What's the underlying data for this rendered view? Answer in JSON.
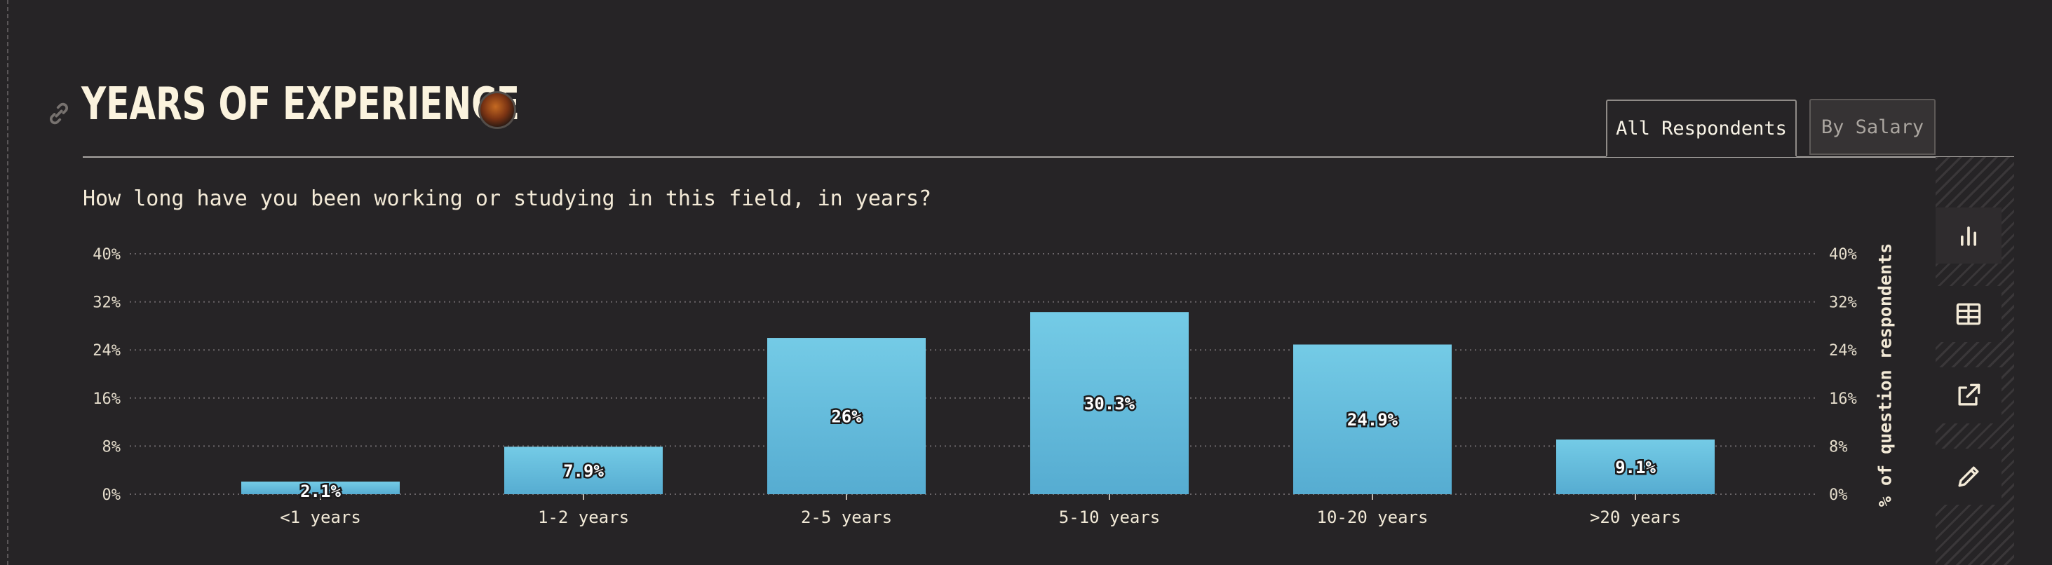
{
  "section": {
    "title": "YEARS OF EXPERIENCE",
    "question": "How long have you been working or studying in this field, in years?",
    "icons": [
      "link-icon",
      "avatar"
    ]
  },
  "tabs": [
    {
      "label": "All Respondents",
      "active": true
    },
    {
      "label": "By Salary",
      "active": false
    }
  ],
  "toolbar": {
    "items": [
      {
        "name": "bar-chart-icon",
        "active": true
      },
      {
        "name": "table-icon",
        "active": false
      },
      {
        "name": "share-icon",
        "active": false
      },
      {
        "name": "edit-icon",
        "active": false
      }
    ]
  },
  "colors": {
    "background": "#262426",
    "bar_top": "#74cbe6",
    "bar_bottom": "#56acd1",
    "text": "#f3ead7"
  },
  "chart_data": {
    "type": "bar",
    "categories": [
      "<1 years",
      "1-2 years",
      "2-5 years",
      "5-10 years",
      "10-20 years",
      ">20 years"
    ],
    "values": [
      2.1,
      7.9,
      26,
      30.3,
      24.9,
      9.1
    ],
    "value_labels": [
      "2.1%",
      "7.9%",
      "26%",
      "30.3%",
      "24.9%",
      "9.1%"
    ],
    "y_ticks": [
      "0%",
      "8%",
      "16%",
      "24%",
      "32%",
      "40%"
    ],
    "y_tick_values": [
      0,
      8,
      16,
      24,
      32,
      40
    ],
    "ylim": [
      0,
      40
    ],
    "ylabel": "% of question respondents",
    "xlabel": "",
    "grid": true,
    "y_axis_both_sides": true
  }
}
